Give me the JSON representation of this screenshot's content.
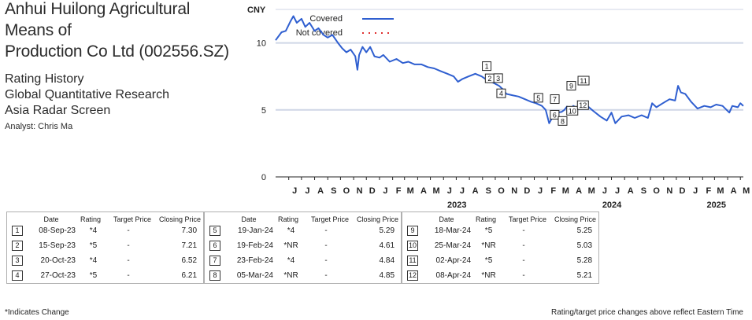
{
  "header": {
    "title_line1": "Anhui Huilong Agricultural Means of",
    "title_line2": "Production Co Ltd (002556.SZ)",
    "line1": "Rating History",
    "line2": "Global Quantitative Research",
    "line3": "Asia Radar Screen",
    "analyst": "Analyst: Chris Ma"
  },
  "chart_data": {
    "type": "line",
    "ylabel": "CNY",
    "ylim": [
      0,
      12.5
    ],
    "yticks": [
      0,
      5,
      10
    ],
    "x_range": [
      "2022-05-01",
      "2025-05-08"
    ],
    "month_labels": [
      "J",
      "J",
      "A",
      "S",
      "O",
      "N",
      "D",
      "J",
      "F",
      "M",
      "A",
      "M",
      "J",
      "J",
      "A",
      "S",
      "O",
      "N",
      "D",
      "J",
      "F",
      "M",
      "A",
      "M",
      "J",
      "J",
      "A",
      "S",
      "O",
      "N",
      "D",
      "J",
      "F",
      "M",
      "A",
      "M"
    ],
    "year_labels": [
      "2023",
      "2024",
      "2025"
    ],
    "reference_lines": [
      10,
      5
    ],
    "legend": {
      "covered": "Covered",
      "not_covered": "Not covered",
      "position": "top"
    },
    "colors": {
      "covered": "#2f5fd0",
      "not_covered": "#e03030",
      "reference": "#cfd6e6"
    },
    "series": [
      {
        "name": "Covered",
        "points": [
          [
            "2022-05-01",
            10.2
          ],
          [
            "2022-05-15",
            10.8
          ],
          [
            "2022-05-25",
            10.9
          ],
          [
            "2022-06-05",
            11.6
          ],
          [
            "2022-06-12",
            12.0
          ],
          [
            "2022-06-20",
            11.5
          ],
          [
            "2022-07-01",
            11.8
          ],
          [
            "2022-07-10",
            11.2
          ],
          [
            "2022-07-20",
            11.5
          ],
          [
            "2022-08-01",
            10.9
          ],
          [
            "2022-08-10",
            11.1
          ],
          [
            "2022-08-22",
            10.6
          ],
          [
            "2022-09-01",
            10.4
          ],
          [
            "2022-09-12",
            10.6
          ],
          [
            "2022-09-25",
            10.0
          ],
          [
            "2022-10-05",
            9.6
          ],
          [
            "2022-10-15",
            9.3
          ],
          [
            "2022-10-25",
            9.5
          ],
          [
            "2022-11-05",
            9.0
          ],
          [
            "2022-11-10",
            8.0
          ],
          [
            "2022-11-14",
            9.1
          ],
          [
            "2022-11-22",
            9.7
          ],
          [
            "2022-12-01",
            9.3
          ],
          [
            "2022-12-10",
            9.7
          ],
          [
            "2022-12-20",
            9.0
          ],
          [
            "2023-01-01",
            8.9
          ],
          [
            "2023-01-10",
            9.1
          ],
          [
            "2023-01-25",
            8.6
          ],
          [
            "2023-02-10",
            8.8
          ],
          [
            "2023-02-25",
            8.5
          ],
          [
            "2023-03-10",
            8.6
          ],
          [
            "2023-03-25",
            8.4
          ],
          [
            "2023-04-10",
            8.4
          ],
          [
            "2023-04-25",
            8.2
          ],
          [
            "2023-05-10",
            8.1
          ],
          [
            "2023-05-25",
            7.9
          ],
          [
            "2023-06-10",
            7.7
          ],
          [
            "2023-06-25",
            7.5
          ],
          [
            "2023-07-05",
            7.1
          ],
          [
            "2023-07-15",
            7.3
          ],
          [
            "2023-07-30",
            7.5
          ],
          [
            "2023-08-15",
            7.7
          ],
          [
            "2023-08-30",
            7.5
          ],
          [
            "2023-09-08",
            7.3
          ],
          [
            "2023-09-15",
            7.2
          ],
          [
            "2023-09-28",
            7.0
          ],
          [
            "2023-10-10",
            6.8
          ],
          [
            "2023-10-20",
            6.5
          ],
          [
            "2023-10-27",
            6.2
          ],
          [
            "2023-11-10",
            6.1
          ],
          [
            "2023-11-25",
            6.0
          ],
          [
            "2023-12-10",
            5.8
          ],
          [
            "2023-12-25",
            5.6
          ],
          [
            "2024-01-05",
            5.5
          ],
          [
            "2024-01-19",
            5.3
          ],
          [
            "2024-01-28",
            5.0
          ],
          [
            "2024-02-05",
            4.0
          ],
          [
            "2024-02-12",
            4.4
          ],
          [
            "2024-02-19",
            4.6
          ],
          [
            "2024-02-23",
            4.8
          ],
          [
            "2024-03-05",
            4.85
          ],
          [
            "2024-03-12",
            5.0
          ],
          [
            "2024-03-18",
            5.25
          ],
          [
            "2024-03-25",
            5.0
          ],
          [
            "2024-04-02",
            5.3
          ],
          [
            "2024-04-08",
            5.2
          ],
          [
            "2024-04-20",
            5.1
          ],
          [
            "2024-05-05",
            5.3
          ],
          [
            "2024-05-20",
            4.9
          ],
          [
            "2024-06-05",
            4.5
          ],
          [
            "2024-06-20",
            4.2
          ],
          [
            "2024-07-01",
            4.8
          ],
          [
            "2024-07-10",
            4.0
          ],
          [
            "2024-07-25",
            4.5
          ],
          [
            "2024-08-10",
            4.6
          ],
          [
            "2024-08-25",
            4.4
          ],
          [
            "2024-09-10",
            4.6
          ],
          [
            "2024-09-25",
            4.4
          ],
          [
            "2024-10-05",
            5.5
          ],
          [
            "2024-10-15",
            5.2
          ],
          [
            "2024-10-30",
            5.5
          ],
          [
            "2024-11-15",
            5.8
          ],
          [
            "2024-11-28",
            5.7
          ],
          [
            "2024-12-05",
            6.8
          ],
          [
            "2024-12-12",
            6.3
          ],
          [
            "2024-12-22",
            6.2
          ],
          [
            "2025-01-05",
            5.6
          ],
          [
            "2025-01-20",
            5.1
          ],
          [
            "2025-02-05",
            5.3
          ],
          [
            "2025-02-20",
            5.2
          ],
          [
            "2025-03-05",
            5.4
          ],
          [
            "2025-03-20",
            5.3
          ],
          [
            "2025-04-05",
            4.8
          ],
          [
            "2025-04-12",
            5.3
          ],
          [
            "2025-04-25",
            5.2
          ],
          [
            "2025-05-01",
            5.5
          ],
          [
            "2025-05-08",
            5.3
          ]
        ]
      }
    ],
    "markers": [
      {
        "n": "1",
        "date": "2023-09-08",
        "price": 7.3
      },
      {
        "n": "2",
        "date": "2023-09-15",
        "price": 7.21
      },
      {
        "n": "3",
        "date": "2023-10-20",
        "price": 6.52
      },
      {
        "n": "4",
        "date": "2023-10-27",
        "price": 6.21
      },
      {
        "n": "5",
        "date": "2024-01-19",
        "price": 5.29
      },
      {
        "n": "6",
        "date": "2024-02-19",
        "price": 4.61
      },
      {
        "n": "7",
        "date": "2024-02-23",
        "price": 4.84
      },
      {
        "n": "8",
        "date": "2024-03-05",
        "price": 4.85
      },
      {
        "n": "9",
        "date": "2024-03-18",
        "price": 5.25
      },
      {
        "n": "10",
        "date": "2024-03-25",
        "price": 5.03
      },
      {
        "n": "11",
        "date": "2024-04-02",
        "price": 5.28
      },
      {
        "n": "12",
        "date": "2024-04-08",
        "price": 5.21
      }
    ]
  },
  "tables": {
    "headers": {
      "date": "Date",
      "rating": "Rating",
      "target": "Target Price",
      "closing": "Closing Price"
    },
    "groups": [
      [
        {
          "n": "1",
          "date": "08-Sep-23",
          "rating": "*4",
          "target": "-",
          "closing": "7.30"
        },
        {
          "n": "2",
          "date": "15-Sep-23",
          "rating": "*5",
          "target": "-",
          "closing": "7.21"
        },
        {
          "n": "3",
          "date": "20-Oct-23",
          "rating": "*4",
          "target": "-",
          "closing": "6.52"
        },
        {
          "n": "4",
          "date": "27-Oct-23",
          "rating": "*5",
          "target": "-",
          "closing": "6.21"
        }
      ],
      [
        {
          "n": "5",
          "date": "19-Jan-24",
          "rating": "*4",
          "target": "-",
          "closing": "5.29"
        },
        {
          "n": "6",
          "date": "19-Feb-24",
          "rating": "*NR",
          "target": "-",
          "closing": "4.61"
        },
        {
          "n": "7",
          "date": "23-Feb-24",
          "rating": "*4",
          "target": "-",
          "closing": "4.84"
        },
        {
          "n": "8",
          "date": "05-Mar-24",
          "rating": "*NR",
          "target": "-",
          "closing": "4.85"
        }
      ],
      [
        {
          "n": "9",
          "date": "18-Mar-24",
          "rating": "*5",
          "target": "-",
          "closing": "5.25"
        },
        {
          "n": "10",
          "date": "25-Mar-24",
          "rating": "*NR",
          "target": "-",
          "closing": "5.03"
        },
        {
          "n": "11",
          "date": "02-Apr-24",
          "rating": "*5",
          "target": "-",
          "closing": "5.28"
        },
        {
          "n": "12",
          "date": "08-Apr-24",
          "rating": "*NR",
          "target": "-",
          "closing": "5.21"
        }
      ]
    ]
  },
  "footer": {
    "left": "*Indicates Change",
    "right": "Rating/target price changes above reflect Eastern Time"
  }
}
